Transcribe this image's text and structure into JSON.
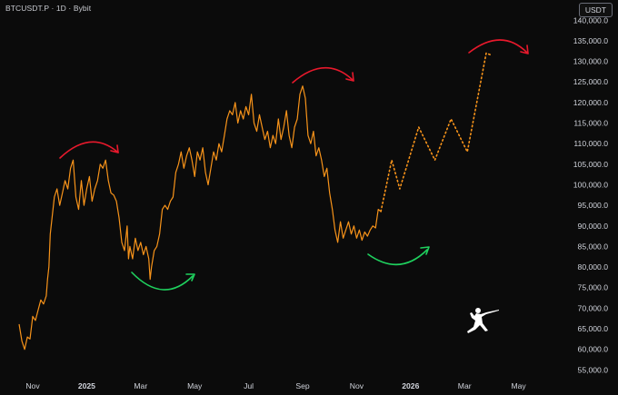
{
  "header": {
    "symbol": "BTCUSDT.P",
    "interval": "1D",
    "exchange": "Bybit",
    "separator": "·"
  },
  "currency_badge": "USDT",
  "colors": {
    "background": "#0b0b0b",
    "price_line": "#f7931a",
    "arc_red": "#e8192c",
    "arc_green": "#1fd15e",
    "axis_text": "#d1d4dc"
  },
  "icons": [
    "fencer-logo-icon"
  ],
  "chart_data": {
    "type": "line",
    "title": "",
    "xlabel": "",
    "ylabel": "",
    "x_tick_labels": [
      "Nov",
      "2025",
      "Mar",
      "May",
      "Jul",
      "Sep",
      "Nov",
      "2026",
      "Mar",
      "May"
    ],
    "x_tick_positions_month_index": [
      0,
      2,
      4,
      6,
      8,
      10,
      12,
      14,
      16,
      18
    ],
    "y_tick_labels": [
      "55,000.0",
      "60,000.0",
      "65,000.0",
      "70,000.0",
      "75,000.0",
      "80,000.0",
      "85,000.0",
      "90,000.0",
      "95,000.0",
      "100,000.0",
      "105,000.0",
      "110,000.0",
      "115,000.0",
      "120,000.0",
      "125,000.0",
      "130,000.0",
      "135,000.0",
      "140,000.0"
    ],
    "y_ticks": [
      55000,
      60000,
      65000,
      70000,
      75000,
      80000,
      85000,
      90000,
      95000,
      100000,
      105000,
      110000,
      115000,
      120000,
      125000,
      130000,
      135000,
      140000
    ],
    "ylim": [
      53000,
      142000
    ],
    "grid": false,
    "legend": "none",
    "series": [
      {
        "style": "solid",
        "points": [
          [
            -0.5,
            66000
          ],
          [
            -0.4,
            62000
          ],
          [
            -0.3,
            60000
          ],
          [
            -0.2,
            63000
          ],
          [
            -0.1,
            62500
          ],
          [
            0.0,
            68000
          ],
          [
            0.1,
            67000
          ],
          [
            0.2,
            69500
          ],
          [
            0.3,
            72000
          ],
          [
            0.4,
            71000
          ],
          [
            0.5,
            73000
          ],
          [
            0.55,
            77000
          ],
          [
            0.6,
            80000
          ],
          [
            0.65,
            88000
          ],
          [
            0.7,
            91000
          ],
          [
            0.8,
            97000
          ],
          [
            0.9,
            99000
          ],
          [
            1.0,
            95000
          ],
          [
            1.1,
            98000
          ],
          [
            1.2,
            101000
          ],
          [
            1.3,
            99000
          ],
          [
            1.4,
            104000
          ],
          [
            1.5,
            106000
          ],
          [
            1.6,
            97000
          ],
          [
            1.7,
            94000
          ],
          [
            1.8,
            101000
          ],
          [
            1.9,
            95000
          ],
          [
            2.0,
            99000
          ],
          [
            2.1,
            102000
          ],
          [
            2.2,
            96000
          ],
          [
            2.3,
            99000
          ],
          [
            2.4,
            101000
          ],
          [
            2.5,
            105000
          ],
          [
            2.6,
            104000
          ],
          [
            2.7,
            106000
          ],
          [
            2.8,
            101000
          ],
          [
            2.9,
            98000
          ],
          [
            3.0,
            97500
          ],
          [
            3.1,
            96000
          ],
          [
            3.2,
            92000
          ],
          [
            3.3,
            86000
          ],
          [
            3.4,
            84000
          ],
          [
            3.5,
            90000
          ],
          [
            3.55,
            82000
          ],
          [
            3.6,
            85000
          ],
          [
            3.7,
            82000
          ],
          [
            3.8,
            87000
          ],
          [
            3.9,
            84000
          ],
          [
            4.0,
            86000
          ],
          [
            4.1,
            83000
          ],
          [
            4.2,
            85000
          ],
          [
            4.3,
            82000
          ],
          [
            4.35,
            77000
          ],
          [
            4.4,
            80000
          ],
          [
            4.5,
            84000
          ],
          [
            4.6,
            85000
          ],
          [
            4.7,
            88000
          ],
          [
            4.8,
            94000
          ],
          [
            4.9,
            95000
          ],
          [
            5.0,
            94000
          ],
          [
            5.1,
            96000
          ],
          [
            5.2,
            97000
          ],
          [
            5.3,
            103000
          ],
          [
            5.4,
            105000
          ],
          [
            5.5,
            108000
          ],
          [
            5.6,
            104000
          ],
          [
            5.7,
            107000
          ],
          [
            5.8,
            109000
          ],
          [
            5.9,
            106000
          ],
          [
            6.0,
            102000
          ],
          [
            6.1,
            108000
          ],
          [
            6.2,
            106000
          ],
          [
            6.3,
            109000
          ],
          [
            6.4,
            103000
          ],
          [
            6.5,
            100000
          ],
          [
            6.6,
            104000
          ],
          [
            6.7,
            108000
          ],
          [
            6.8,
            106000
          ],
          [
            6.9,
            110000
          ],
          [
            7.0,
            108000
          ],
          [
            7.1,
            112000
          ],
          [
            7.2,
            116000
          ],
          [
            7.3,
            118000
          ],
          [
            7.4,
            117000
          ],
          [
            7.5,
            120000
          ],
          [
            7.6,
            115000
          ],
          [
            7.7,
            118000
          ],
          [
            7.8,
            116000
          ],
          [
            7.9,
            119000
          ],
          [
            8.0,
            117000
          ],
          [
            8.1,
            122000
          ],
          [
            8.2,
            115000
          ],
          [
            8.3,
            113000
          ],
          [
            8.4,
            117000
          ],
          [
            8.5,
            114000
          ],
          [
            8.6,
            111000
          ],
          [
            8.7,
            113000
          ],
          [
            8.8,
            109000
          ],
          [
            8.9,
            112000
          ],
          [
            9.0,
            110000
          ],
          [
            9.1,
            116000
          ],
          [
            9.2,
            111000
          ],
          [
            9.3,
            114000
          ],
          [
            9.4,
            118000
          ],
          [
            9.5,
            112000
          ],
          [
            9.6,
            109000
          ],
          [
            9.7,
            114000
          ],
          [
            9.8,
            116000
          ],
          [
            9.9,
            122000
          ],
          [
            10.0,
            124000
          ],
          [
            10.1,
            121000
          ],
          [
            10.2,
            112000
          ],
          [
            10.3,
            110000
          ],
          [
            10.4,
            113000
          ],
          [
            10.5,
            107000
          ],
          [
            10.6,
            109000
          ],
          [
            10.7,
            106000
          ],
          [
            10.8,
            102000
          ],
          [
            10.9,
            104000
          ],
          [
            11.0,
            98000
          ],
          [
            11.1,
            94000
          ],
          [
            11.2,
            89000
          ],
          [
            11.3,
            86000
          ],
          [
            11.4,
            91000
          ],
          [
            11.5,
            87000
          ],
          [
            11.6,
            89000
          ],
          [
            11.7,
            91000
          ],
          [
            11.8,
            88000
          ],
          [
            11.9,
            90000
          ],
          [
            12.0,
            87000
          ],
          [
            12.1,
            89000
          ],
          [
            12.2,
            86500
          ],
          [
            12.3,
            88500
          ],
          [
            12.4,
            87500
          ],
          [
            12.5,
            89000
          ],
          [
            12.6,
            90000
          ],
          [
            12.7,
            89500
          ],
          [
            12.8,
            94000
          ],
          [
            12.9,
            93500
          ]
        ]
      },
      {
        "style": "dotted",
        "points": [
          [
            12.9,
            93500
          ],
          [
            13.3,
            106000
          ],
          [
            13.6,
            99000
          ],
          [
            14.3,
            114000
          ],
          [
            14.9,
            106000
          ],
          [
            15.5,
            116000
          ],
          [
            16.1,
            108000
          ],
          [
            16.8,
            132000
          ],
          [
            17.0,
            131500
          ]
        ]
      }
    ],
    "annotations": [
      {
        "kind": "arc-arrow",
        "color": "red",
        "over": "first peak"
      },
      {
        "kind": "arc-arrow",
        "color": "green",
        "under": "first trough"
      },
      {
        "kind": "arc-arrow",
        "color": "red",
        "over": "second peak"
      },
      {
        "kind": "arc-arrow",
        "color": "green",
        "under": "recent trough"
      },
      {
        "kind": "arc-arrow",
        "color": "red",
        "over": "projected peak"
      }
    ]
  }
}
